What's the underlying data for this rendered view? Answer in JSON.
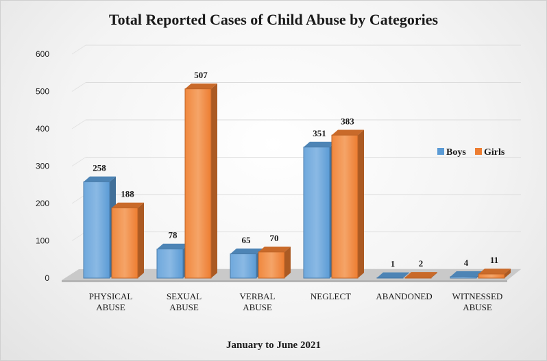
{
  "chart_data": {
    "type": "bar",
    "title": "Total Reported Cases of Child Abuse by Categories",
    "xlabel": "January  to June 2021",
    "ylabel": "",
    "ylim": [
      0,
      600
    ],
    "yticks": [
      0,
      100,
      200,
      300,
      400,
      500,
      600
    ],
    "categories": [
      [
        "PHYSICAL",
        "ABUSE"
      ],
      [
        "SEXUAL",
        "ABUSE"
      ],
      [
        "VERBAL",
        "ABUSE"
      ],
      [
        "NEGLECT"
      ],
      [
        "ABANDONED"
      ],
      [
        "WITNESSED",
        "ABUSE"
      ]
    ],
    "series": [
      {
        "name": "Boys",
        "values": [
          258,
          78,
          65,
          351,
          1,
          4
        ],
        "color": "#5b9bd5"
      },
      {
        "name": "Girls",
        "values": [
          188,
          507,
          70,
          383,
          2,
          11
        ],
        "color": "#ed7d31"
      }
    ],
    "legend_position": "right",
    "grid": true,
    "style": "3d-clustered-column"
  }
}
